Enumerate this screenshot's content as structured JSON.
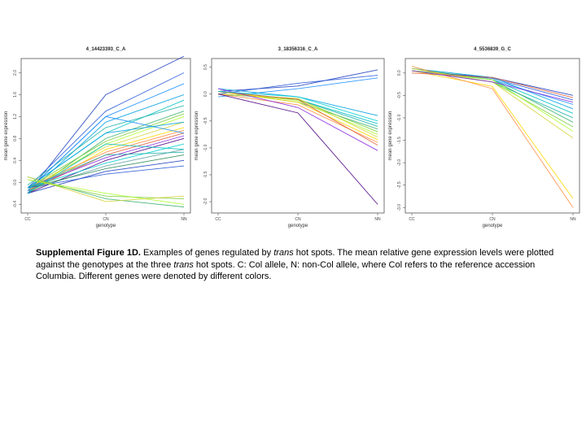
{
  "figure": {
    "caption_label": "Supplemental Figure 1D.",
    "caption_part1": " Examples of genes regulated by ",
    "caption_em1": "trans",
    "caption_part2": " hot spots. The mean relative gene expression levels were plotted against the genotypes at the three ",
    "caption_em2": "trans",
    "caption_part3": " hot spots. C: Col allele, N: non-Col allele, where Col refers to the reference accession Columbia. Different genes were denoted by different colors."
  },
  "colors": {
    "palette": [
      "#1f3fbf",
      "#2a5bd7",
      "#1e90ff",
      "#00a0e0",
      "#00c0c0",
      "#20b2aa",
      "#3cb371",
      "#7ccd3c",
      "#adff2f",
      "#d4d43a",
      "#ffd700",
      "#ff8c42",
      "#e0603a",
      "#8a2be2",
      "#4b0082",
      "#00ced1",
      "#5f9ea0",
      "#2e8b57"
    ]
  },
  "chart_data": [
    {
      "type": "line",
      "title": "4_14423393_C_A",
      "xlabel": "genotype",
      "ylabel": "mean gene expression",
      "categories": [
        "CC",
        "CN",
        "NN"
      ],
      "ylim": [
        -0.5,
        2.2
      ],
      "yticks": [
        -0.4,
        0.0,
        0.4,
        0.8,
        1.2,
        1.6,
        2.0
      ],
      "yticklabels": [
        "-0.4",
        "0.0",
        "0.4",
        "0.8",
        "1.2",
        "1.6",
        "2.0"
      ],
      "series_values": [
        [
          -0.2,
          1.6,
          2.3
        ],
        [
          -0.1,
          1.3,
          2.0
        ],
        [
          -0.15,
          1.2,
          1.8
        ],
        [
          -0.2,
          1.1,
          1.6
        ],
        [
          -0.1,
          0.9,
          1.5
        ],
        [
          -0.05,
          1.0,
          1.4
        ],
        [
          -0.2,
          0.8,
          1.3
        ],
        [
          -0.1,
          0.75,
          1.25
        ],
        [
          -0.15,
          0.7,
          1.2
        ],
        [
          -0.1,
          0.65,
          1.1
        ],
        [
          -0.2,
          0.6,
          1.0
        ],
        [
          -0.1,
          0.55,
          0.95
        ],
        [
          -0.15,
          0.5,
          0.9
        ],
        [
          -0.1,
          0.45,
          0.85
        ],
        [
          -0.2,
          0.4,
          0.8
        ],
        [
          -0.1,
          0.35,
          0.7
        ],
        [
          -0.15,
          0.3,
          0.6
        ],
        [
          -0.1,
          0.25,
          0.5
        ],
        [
          -0.2,
          0.2,
          0.4
        ],
        [
          -0.1,
          0.15,
          0.3
        ],
        [
          -0.15,
          1.2,
          0.9
        ],
        [
          -0.1,
          0.9,
          1.1
        ],
        [
          -0.2,
          0.7,
          0.6
        ],
        [
          -0.1,
          0.5,
          0.55
        ],
        [
          0.1,
          -0.3,
          -0.45
        ],
        [
          0.05,
          -0.25,
          -0.3
        ],
        [
          0.05,
          -0.2,
          -0.4
        ],
        [
          0.1,
          -0.35,
          -0.25
        ]
      ]
    },
    {
      "type": "line",
      "title": "3_18356316_C_A",
      "xlabel": "genotype",
      "ylabel": "mean gene expression",
      "categories": [
        "CC",
        "CN",
        "NN"
      ],
      "ylim": [
        -2.15,
        0.6
      ],
      "yticks": [
        -2.0,
        -1.5,
        -1.0,
        -0.5,
        0.0,
        0.5
      ],
      "yticklabels": [
        "-2.0",
        "-1.5",
        "-1.0",
        "-0.5",
        "0.0",
        "0.5"
      ],
      "series_values": [
        [
          0.05,
          0.15,
          0.45
        ],
        [
          0.0,
          0.2,
          0.35
        ],
        [
          -0.05,
          0.1,
          0.3
        ],
        [
          0.1,
          -0.05,
          -0.4
        ],
        [
          0.05,
          -0.1,
          -0.55
        ],
        [
          0.0,
          -0.1,
          -0.6
        ],
        [
          0.05,
          -0.15,
          -0.65
        ],
        [
          0.0,
          -0.1,
          -0.7
        ],
        [
          0.05,
          -0.12,
          -0.75
        ],
        [
          0.0,
          -0.08,
          -0.8
        ],
        [
          0.05,
          -0.15,
          -0.85
        ],
        [
          0.0,
          -0.2,
          -0.9
        ],
        [
          0.05,
          -0.1,
          -0.95
        ],
        [
          0.1,
          -0.25,
          -1.05
        ],
        [
          0.0,
          -0.35,
          -2.05
        ],
        [
          0.05,
          -0.05,
          -0.5
        ]
      ]
    },
    {
      "type": "line",
      "title": "4_5536839_G_C",
      "xlabel": "genotype",
      "ylabel": "mean gene expression",
      "categories": [
        "CC",
        "CN",
        "NN"
      ],
      "ylim": [
        -3.05,
        0.25
      ],
      "yticks": [
        -3.0,
        -2.5,
        -2.0,
        -1.5,
        -1.0,
        -0.5,
        0.0
      ],
      "yticklabels": [
        "-3.0",
        "-2.5",
        "-2.0",
        "-1.5",
        "-1.0",
        "-0.5",
        "0.0"
      ],
      "series_values": [
        [
          0.05,
          -0.1,
          -0.5
        ],
        [
          0.05,
          -0.12,
          -0.6
        ],
        [
          0.05,
          -0.15,
          -0.7
        ],
        [
          0.1,
          -0.1,
          -0.8
        ],
        [
          0.05,
          -0.15,
          -0.9
        ],
        [
          0.05,
          -0.2,
          -1.0
        ],
        [
          0.1,
          -0.15,
          -1.1
        ],
        [
          0.05,
          -0.2,
          -1.2
        ],
        [
          0.05,
          -0.15,
          -1.3
        ],
        [
          0.1,
          -0.2,
          -1.45
        ],
        [
          0.05,
          -0.3,
          -2.8
        ],
        [
          0.15,
          -0.35,
          -3.0
        ],
        [
          0.0,
          -0.1,
          -0.55
        ],
        [
          0.05,
          -0.2,
          -0.65
        ]
      ]
    }
  ]
}
